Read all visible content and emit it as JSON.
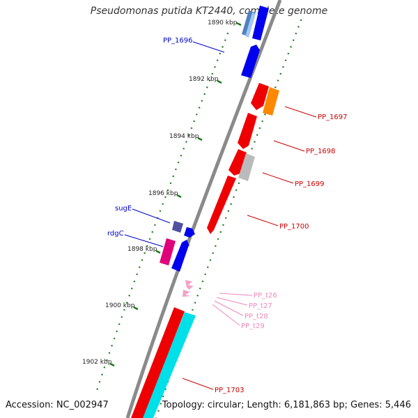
{
  "title": "Pseudomonas putida KT2440, complete genome",
  "footer": {
    "accession": "Accession: NC_002947",
    "summary": "Topology: circular; Length: 6,181,863 bp; Genes: 5,446"
  },
  "ticks": [
    "1890 kbp",
    "1892 kbp",
    "1894 kbp",
    "1896 kbp",
    "1898 kbp",
    "1900 kbp",
    "1902 kbp"
  ],
  "colors": {
    "backbone": "#8a8a8a",
    "tick": "#1a7a1a",
    "forward_label": "#0000cc",
    "reverse_label": "#cc0000",
    "trna_label": "#ee88bb",
    "red": "#ee0000",
    "blue": "#0000ee",
    "orange": "#ff8800",
    "grey": "#bbbbbb",
    "cyan": "#00e0e8",
    "magenta": "#e0007a",
    "pink": "#f4a0c8",
    "purple": "#5050a0",
    "steelblue": "#5080c0"
  },
  "labels": {
    "left": [
      "PP_1696",
      "sugE",
      "rdgC"
    ],
    "right": [
      "PP_1697",
      "PP_1698",
      "PP_1699",
      "PP_1700",
      "PP_t26",
      "PP_t27",
      "PP_t28",
      "PP_t29",
      "PP_1703"
    ]
  }
}
